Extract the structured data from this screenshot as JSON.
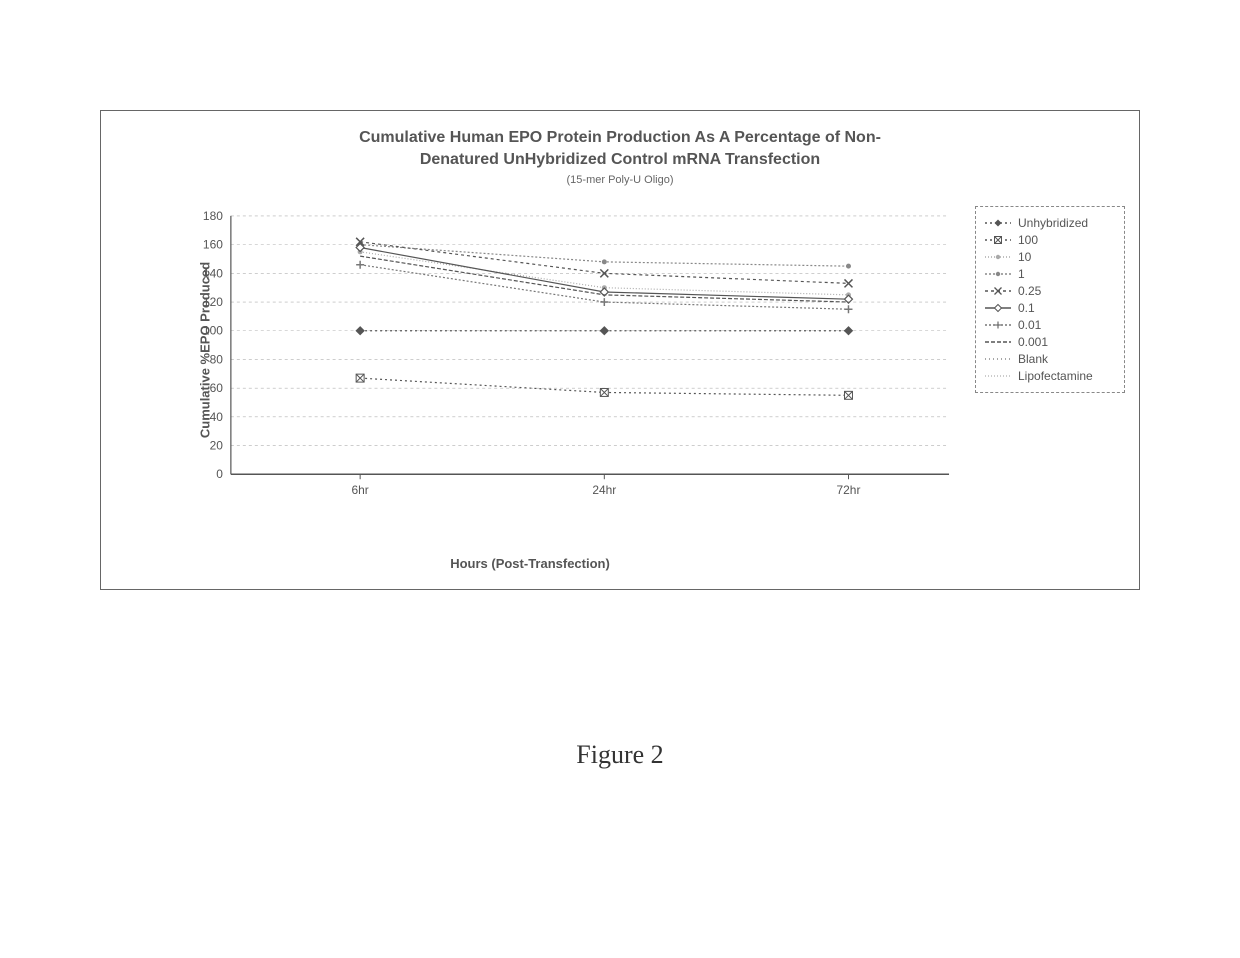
{
  "figure_caption": "Figure 2",
  "chart": {
    "type": "line",
    "title_line1": "Cumulative Human EPO Protein Production As A Percentage of Non-",
    "title_line2": "Denatured UnHybridized Control mRNA Transfection",
    "subtitle": "(15-mer Poly-U Oligo)",
    "title_fontsize": 16,
    "subtitle_fontsize": 11,
    "x_axis_label": "Hours (Post-Transfection)",
    "y_axis_label": "Cumulative %EPO Produced",
    "label_fontsize": 13,
    "background_color": "#ffffff",
    "grid_color": "#b0b0b0",
    "axis_color": "#555555",
    "text_color": "#555555",
    "ylim": [
      0,
      180
    ],
    "ytick_step": 20,
    "yticks": [
      0,
      20,
      40,
      60,
      80,
      100,
      120,
      140,
      160,
      180
    ],
    "x_categories": [
      "6hr",
      "24hr",
      "72hr"
    ],
    "x_positions": [
      0.18,
      0.52,
      0.86
    ],
    "line_width": 1.2,
    "series": [
      {
        "name": "Unhybridized",
        "color": "#555555",
        "dash": "2,3",
        "marker": "diamond",
        "values": [
          100,
          100,
          100
        ]
      },
      {
        "name": "100",
        "color": "#555555",
        "dash": "2,3",
        "marker": "cross-square",
        "values": [
          67,
          57,
          55
        ]
      },
      {
        "name": "10",
        "color": "#aaaaaa",
        "dash": "1,2",
        "marker": "dot",
        "values": [
          155,
          130,
          125
        ]
      },
      {
        "name": "1",
        "color": "#888888",
        "dash": "2,2",
        "marker": "dot",
        "values": [
          160,
          148,
          145
        ]
      },
      {
        "name": "0.25",
        "color": "#555555",
        "dash": "3,3",
        "marker": "x",
        "values": [
          162,
          140,
          133
        ]
      },
      {
        "name": "0.1",
        "color": "#555555",
        "dash": "none",
        "marker": "diamond-open",
        "values": [
          158,
          127,
          122
        ]
      },
      {
        "name": "0.01",
        "color": "#777777",
        "dash": "2,2",
        "marker": "plus",
        "values": [
          146,
          120,
          115
        ]
      },
      {
        "name": "0.001",
        "color": "#555555",
        "dash": "4,2",
        "marker": "none",
        "values": [
          152,
          125,
          120
        ]
      },
      {
        "name": "Blank",
        "color": "#888888",
        "dash": "1,3",
        "marker": "none",
        "values": [
          null,
          null,
          null
        ]
      },
      {
        "name": "Lipofectamine",
        "color": "#bbbbbb",
        "dash": "1,2",
        "marker": "none",
        "values": [
          null,
          null,
          null
        ]
      }
    ]
  }
}
